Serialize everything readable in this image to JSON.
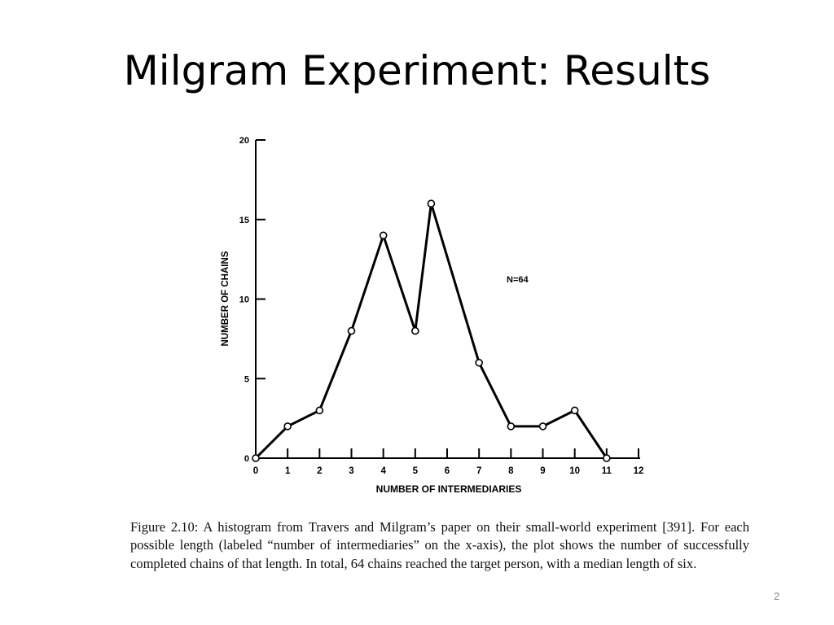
{
  "slide": {
    "title": "Milgram Experiment: Results",
    "number": "2"
  },
  "caption": "Figure 2.10: A histogram from Travers and Milgram’s paper on their small-world experiment [391]. For each possible length (labeled “number of intermediaries” on the x-axis), the plot shows the number of successfully completed chains of that length. In total, 64 chains reached the target person, with a median length of six.",
  "chart_data": {
    "type": "line",
    "title": "",
    "xlabel": "NUMBER OF INTERMEDIARIES",
    "ylabel": "NUMBER OF CHAINS",
    "annotation": "N=64",
    "xlim": [
      0,
      12
    ],
    "ylim": [
      0,
      20
    ],
    "x_ticks": [
      "0",
      "1",
      "2",
      "3",
      "4",
      "5",
      "6",
      "7",
      "8",
      "9",
      "10",
      "11",
      "12"
    ],
    "y_ticks": [
      "0",
      "5",
      "10",
      "15",
      "20"
    ],
    "series": [
      {
        "x": [
          0,
          1,
          2,
          3,
          4,
          5,
          5.5,
          7,
          8,
          9,
          10,
          11
        ],
        "y": [
          0,
          2,
          3,
          8,
          14,
          8,
          16,
          6,
          2,
          2,
          3,
          0
        ]
      }
    ],
    "line_color": "#000000",
    "marker": "open-circle"
  }
}
